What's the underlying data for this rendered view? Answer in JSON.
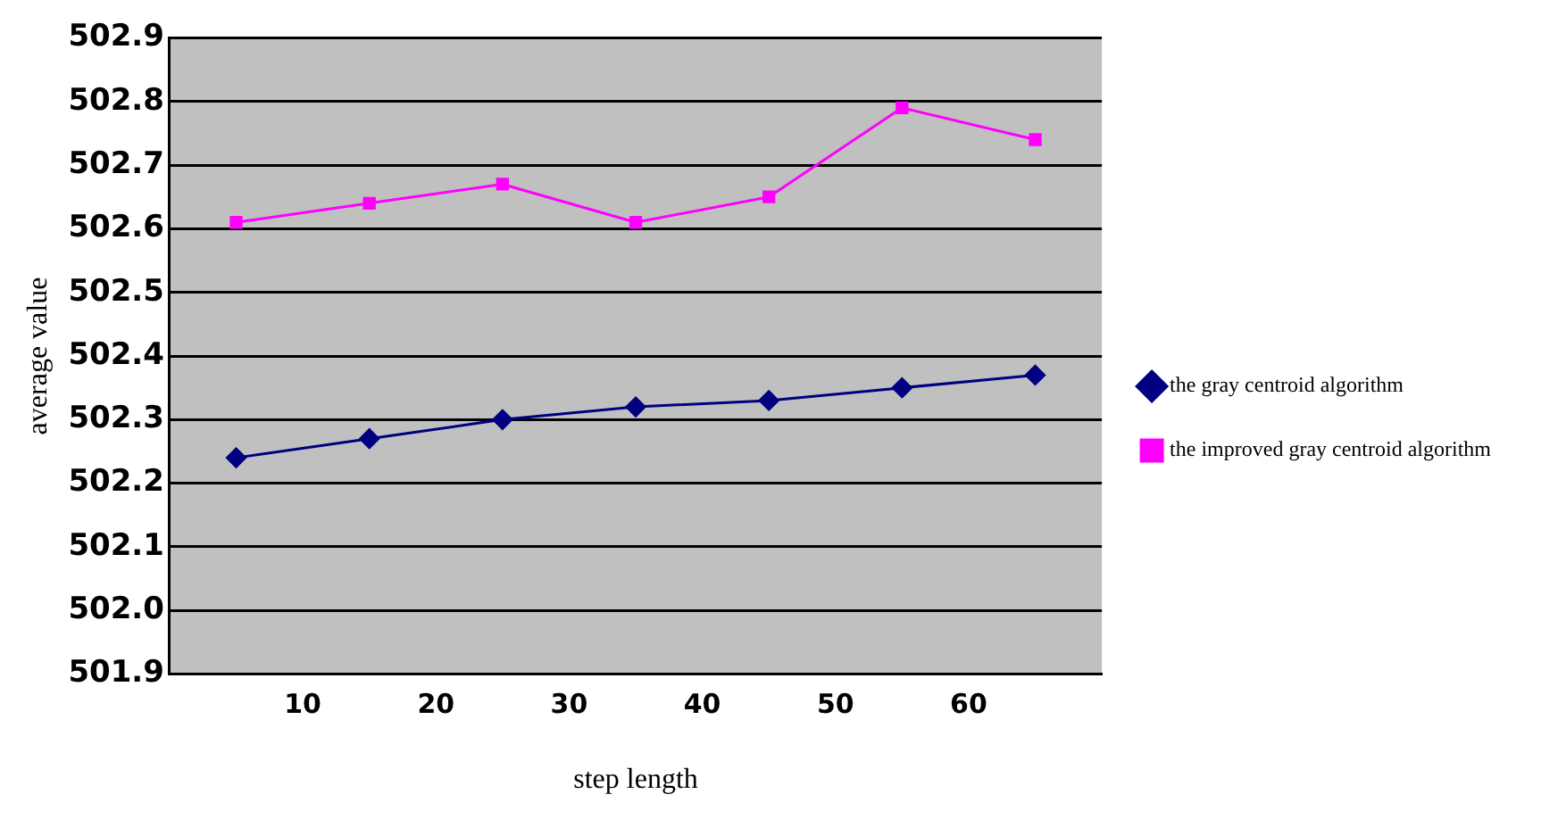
{
  "chart_data": {
    "type": "line",
    "xlabel": "step length",
    "ylabel": "average value",
    "xlim": [
      0,
      70
    ],
    "xticks": [
      10,
      20,
      30,
      40,
      50,
      60
    ],
    "ylim": [
      501.9,
      502.9
    ],
    "yticks": [
      {
        "value": 501.9,
        "label": "501.9"
      },
      {
        "value": 502.0,
        "label": "502.0"
      },
      {
        "value": 502.1,
        "label": "502.1"
      },
      {
        "value": 502.2,
        "label": "502.2"
      },
      {
        "value": 502.3,
        "label": "502.3"
      },
      {
        "value": 502.4,
        "label": "502.4"
      },
      {
        "value": 502.5,
        "label": "502.5"
      },
      {
        "value": 502.6,
        "label": "502.6"
      },
      {
        "value": 502.7,
        "label": "502.7"
      },
      {
        "value": 502.8,
        "label": "502.8"
      },
      {
        "value": 502.9,
        "label": "502.9"
      }
    ],
    "x": [
      5,
      15,
      25,
      35,
      45,
      55,
      65
    ],
    "series": [
      {
        "name": "the gray centroid algorithm",
        "color": "#000080",
        "marker": "diamond",
        "values": [
          502.24,
          502.27,
          502.3,
          502.32,
          502.33,
          502.35,
          502.37
        ]
      },
      {
        "name": "the improved gray centroid algorithm",
        "color": "#ff00ff",
        "marker": "square",
        "values": [
          502.61,
          502.64,
          502.67,
          502.61,
          502.65,
          502.79,
          502.74
        ]
      }
    ],
    "grid": "y",
    "legend": "right",
    "line_style": "solid"
  }
}
